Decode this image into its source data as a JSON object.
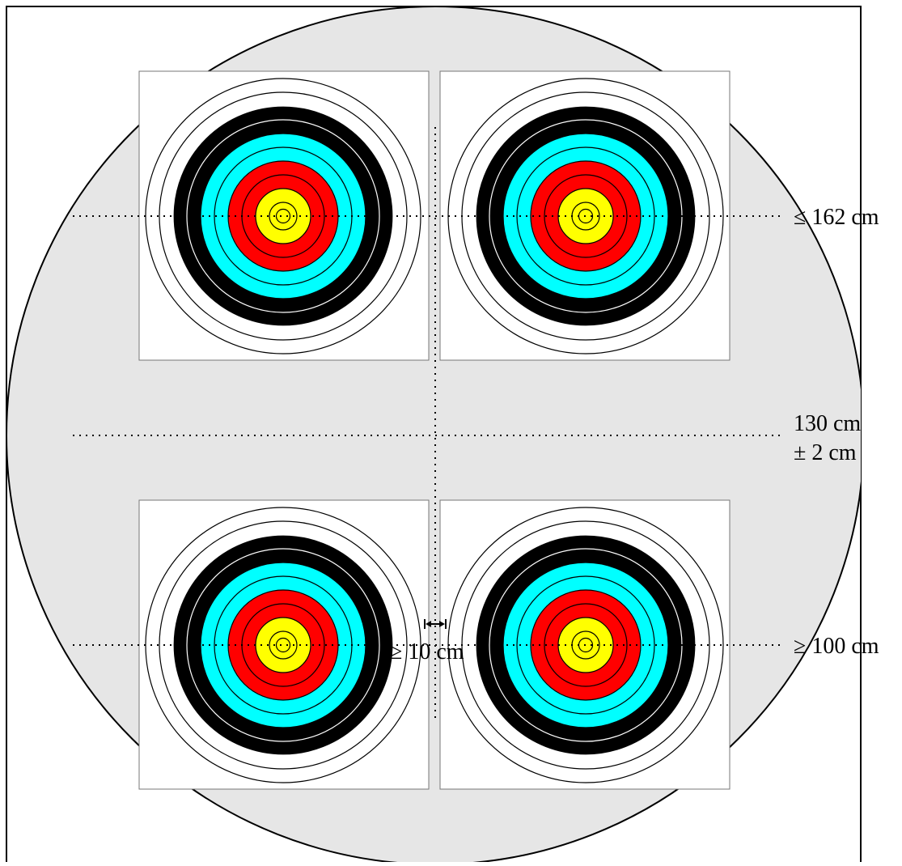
{
  "labels": {
    "max_height": "≤ 162 cm",
    "center_height": "130 cm",
    "center_tolerance": "± 2 cm",
    "min_height": "≥ 100 cm",
    "min_gap": "≥ 10 cm"
  },
  "colors": {
    "boss": "#e6e6e6",
    "white": "#ffffff",
    "black": "#000000",
    "blue": "#00ffff",
    "red": "#ff0000",
    "gold": "#ffff00"
  },
  "targets": [
    {
      "id": "top-left"
    },
    {
      "id": "top-right"
    },
    {
      "id": "bottom-left"
    },
    {
      "id": "bottom-right"
    }
  ],
  "target_zones": [
    {
      "ring": 1,
      "color": "white"
    },
    {
      "ring": 2,
      "color": "white"
    },
    {
      "ring": 3,
      "color": "black"
    },
    {
      "ring": 4,
      "color": "black"
    },
    {
      "ring": 5,
      "color": "blue"
    },
    {
      "ring": 6,
      "color": "blue"
    },
    {
      "ring": 7,
      "color": "red"
    },
    {
      "ring": 8,
      "color": "red"
    },
    {
      "ring": 9,
      "color": "gold"
    },
    {
      "ring": 10,
      "color": "gold"
    },
    {
      "ring": "X",
      "color": "gold"
    }
  ]
}
